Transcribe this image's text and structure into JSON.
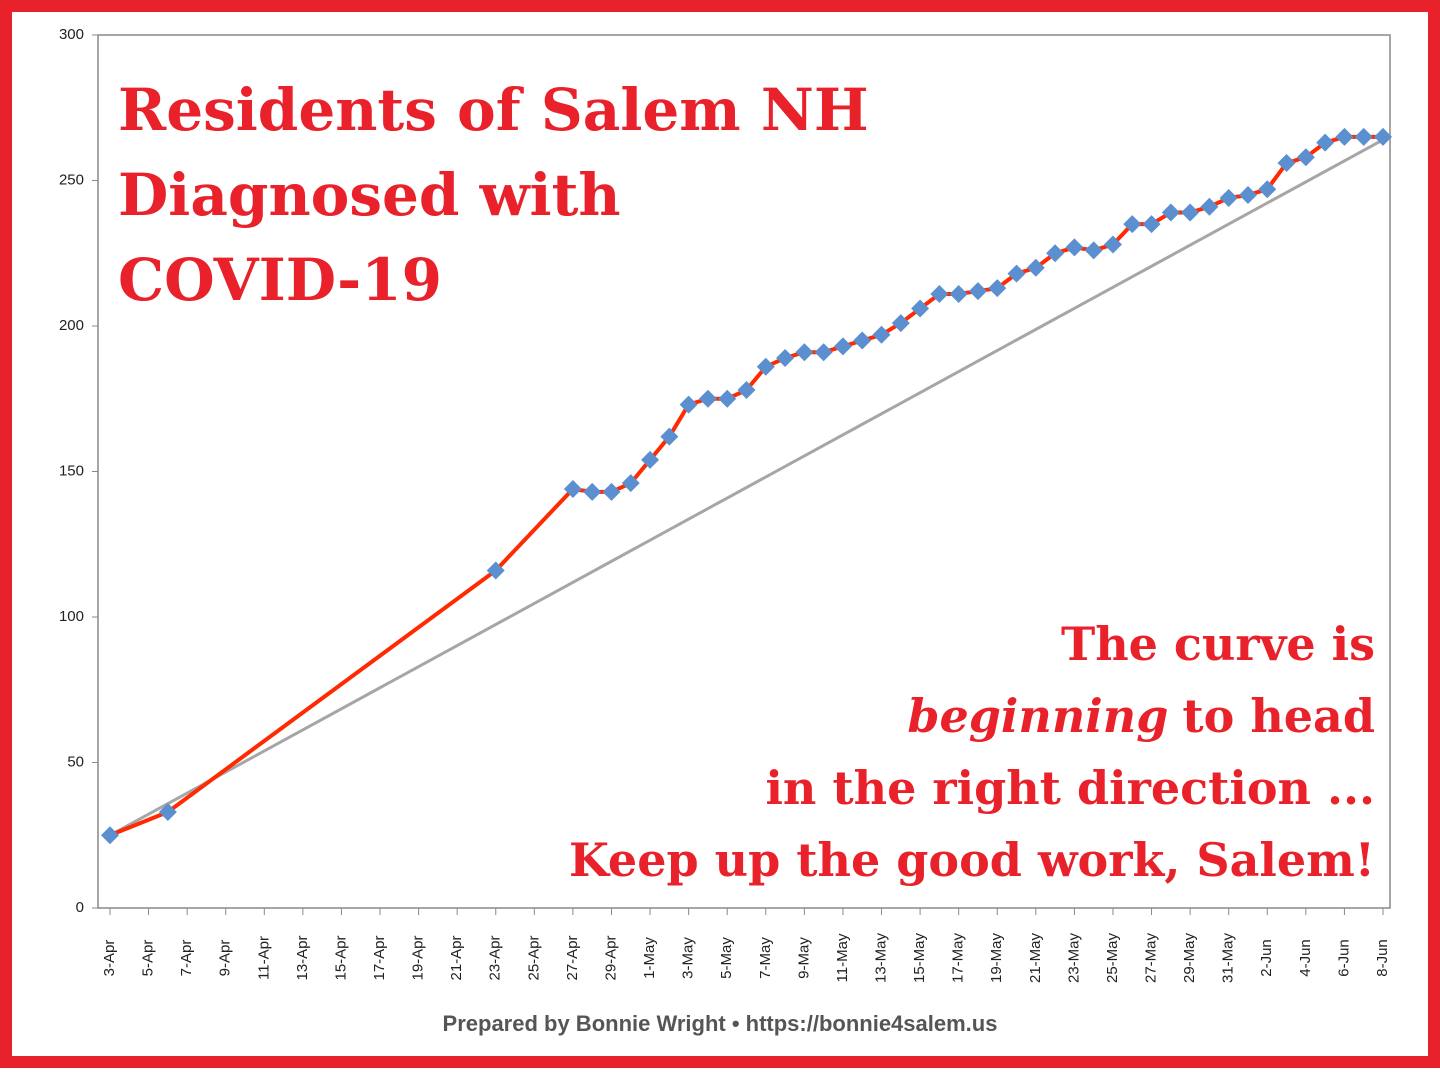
{
  "chart_data": {
    "type": "line",
    "title": [
      "Residents of Salem NH",
      "Diagnosed with",
      "COVID-19"
    ],
    "annotation": [
      "The curve is",
      "beginning",
      "to head",
      "in the right direction ...",
      "Keep up the good work, Salem!"
    ],
    "footer": "Prepared by Bonnie Wright • https://bonnie4salem.us",
    "categories": [
      "3-Apr",
      null,
      "5-Apr",
      null,
      "7-Apr",
      null,
      "9-Apr",
      null,
      "11-Apr",
      null,
      "13-Apr",
      null,
      "15-Apr",
      null,
      "17-Apr",
      null,
      "19-Apr",
      null,
      "21-Apr",
      null,
      "23-Apr",
      null,
      "25-Apr",
      null,
      "27-Apr",
      null,
      "29-Apr",
      null,
      "1-May",
      null,
      "3-May",
      null,
      "5-May",
      null,
      "7-May",
      null,
      "9-May",
      null,
      "11-May",
      null,
      "13-May",
      null,
      "15-May",
      null,
      "17-May",
      null,
      "19-May",
      null,
      "21-May",
      null,
      "23-May",
      null,
      "25-May",
      null,
      "27-May",
      null,
      "29-May",
      null,
      "31-May",
      null,
      "2-Jun",
      null,
      "4-Jun",
      null,
      "6-Jun",
      null,
      "8-Jun"
    ],
    "series": [
      {
        "color": "#ff2a00",
        "marker_color": "#5b8fd0",
        "x": [
          "3-Apr",
          "6-Apr",
          "23-Apr",
          "27-Apr",
          "28-Apr",
          "29-Apr",
          "30-Apr",
          "1-May",
          "2-May",
          "3-May",
          "4-May",
          "5-May",
          "6-May",
          "7-May",
          "8-May",
          "9-May",
          "10-May",
          "11-May",
          "12-May",
          "13-May",
          "14-May",
          "15-May",
          "16-May",
          "17-May",
          "18-May",
          "19-May",
          "20-May",
          "21-May",
          "22-May",
          "23-May",
          "24-May",
          "25-May",
          "26-May",
          "27-May",
          "28-May",
          "29-May",
          "30-May",
          "31-May",
          "1-Jun",
          "2-Jun",
          "3-Jun",
          "4-Jun",
          "5-Jun",
          "6-Jun",
          "7-Jun",
          "8-Jun"
        ],
        "values": [
          25,
          33,
          116,
          144,
          143,
          143,
          146,
          154,
          162,
          173,
          175,
          175,
          178,
          186,
          189,
          191,
          191,
          193,
          195,
          197,
          201,
          206,
          211,
          211,
          212,
          213,
          218,
          220,
          225,
          227,
          226,
          228,
          235,
          235,
          239,
          239,
          241,
          244,
          245,
          247,
          256,
          258,
          263,
          265,
          265,
          265
        ]
      },
      {
        "color": "#a6a6a6",
        "x": [
          "3-Apr",
          "8-Jun"
        ],
        "values": [
          25,
          264
        ]
      }
    ],
    "ylim": [
      0,
      300
    ],
    "yticks": [
      0,
      50,
      100,
      150,
      200,
      250,
      300
    ]
  }
}
